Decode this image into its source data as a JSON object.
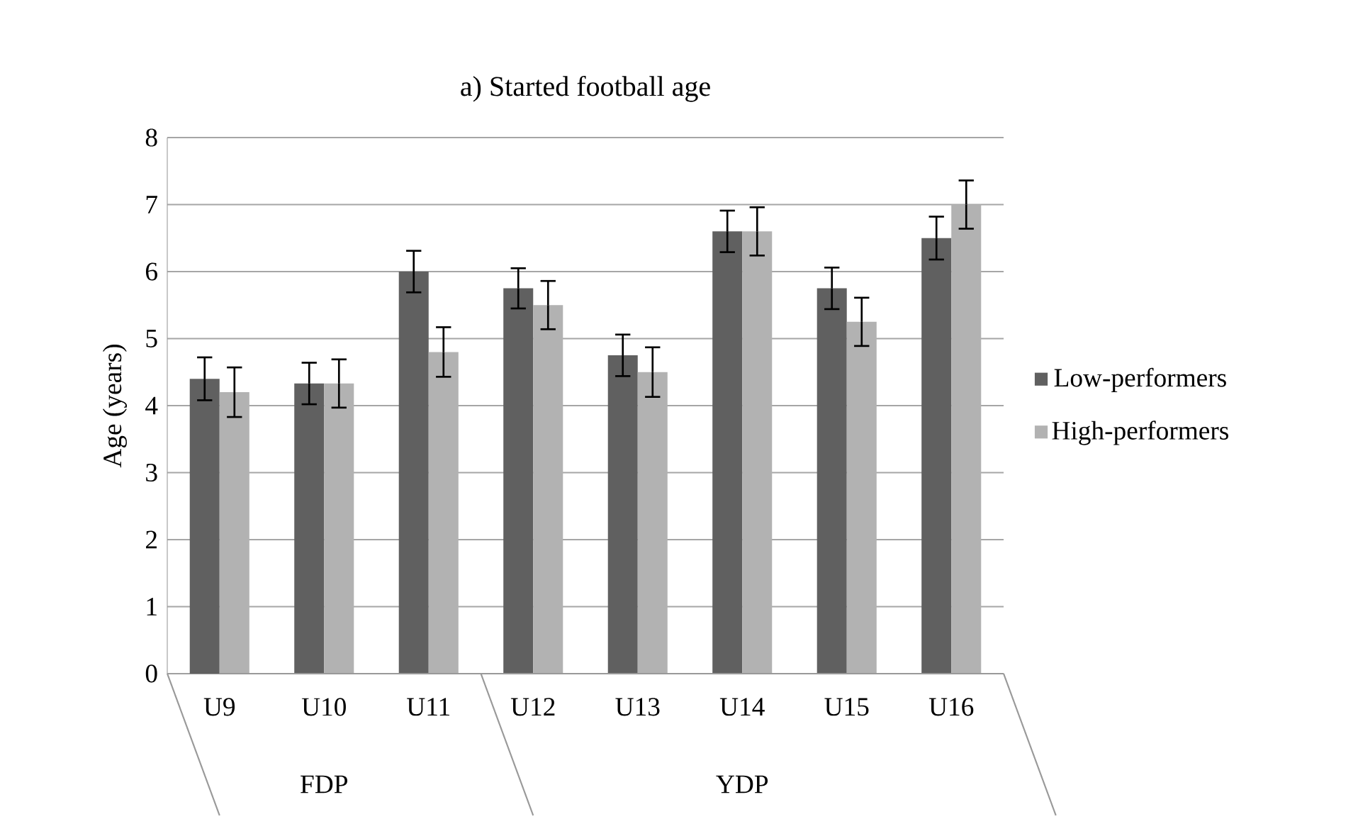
{
  "chart_data": {
    "type": "bar",
    "title": "a) Started football age",
    "ylabel": "Age (years)",
    "categories": [
      "U9",
      "U10",
      "U11",
      "U12",
      "U13",
      "U14",
      "U15",
      "U16"
    ],
    "series": [
      {
        "name": "Low-performers",
        "color": "#606060",
        "values": [
          4.4,
          4.33,
          6.0,
          5.75,
          4.75,
          6.6,
          5.75,
          6.5
        ],
        "errors": [
          0.32,
          0.31,
          0.31,
          0.3,
          0.31,
          0.31,
          0.31,
          0.32
        ]
      },
      {
        "name": "High-performers",
        "color": "#b2b2b2",
        "values": [
          4.2,
          4.33,
          4.8,
          5.5,
          4.5,
          6.6,
          5.25,
          7.0
        ],
        "errors": [
          0.37,
          0.36,
          0.37,
          0.36,
          0.37,
          0.36,
          0.36,
          0.36
        ]
      }
    ],
    "annotations": [
      "FDP",
      "YDP"
    ],
    "ylim": [
      0,
      8
    ],
    "yticks": [
      0,
      1,
      2,
      3,
      4,
      5,
      6,
      7,
      8
    ],
    "grid": "y",
    "legend": "right"
  }
}
